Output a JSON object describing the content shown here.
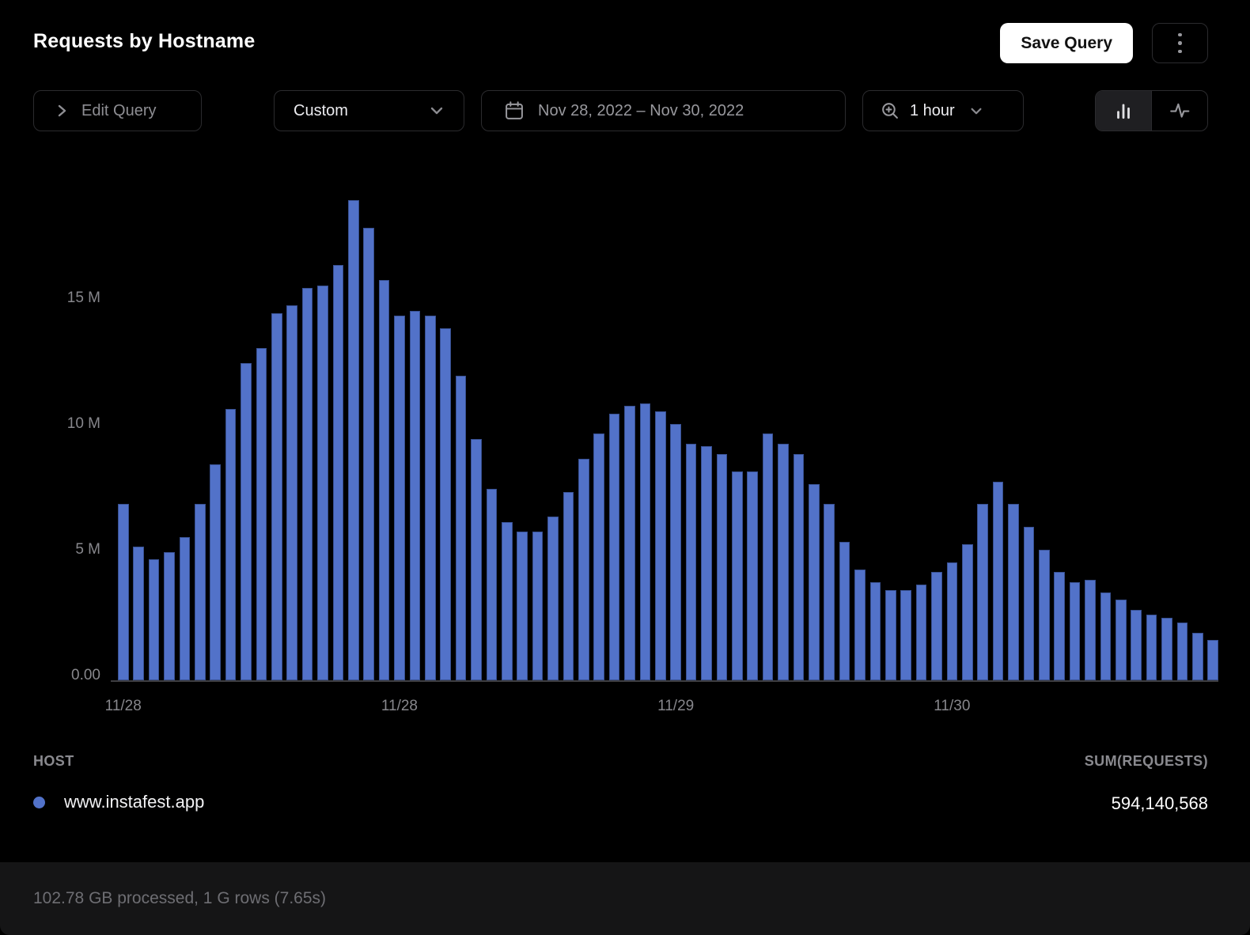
{
  "header": {
    "title": "Requests by Hostname",
    "save_button_label": "Save Query"
  },
  "toolbar": {
    "edit_query_label": "Edit Query",
    "range_preset_value": "Custom",
    "date_range_value": "Nov 28, 2022 – Nov 30, 2022",
    "interval_value": "1 hour",
    "chart_type_selected": "bar"
  },
  "chart_data": {
    "type": "bar",
    "title": "Requests by Hostname",
    "x_unit": "time, 1 hour bins over Nov 28, 2022 – Nov 30, 2022",
    "y_unit": "requests (millions)",
    "ylim_millions": [
      0,
      20.5
    ],
    "grid": false,
    "legend_position": "bottom-table",
    "bar_color": "#5272c9",
    "y_ticks": [
      {
        "label": "15 M",
        "value_millions": 15
      },
      {
        "label": "10 M",
        "value_millions": 10
      },
      {
        "label": "5 M",
        "value_millions": 5
      },
      {
        "label": "0.00",
        "value_millions": 0
      }
    ],
    "x_ticks": [
      {
        "label": "11/28",
        "bar_index": 0
      },
      {
        "label": "11/28",
        "bar_index": 18
      },
      {
        "label": "11/29",
        "bar_index": 36
      },
      {
        "label": "11/30",
        "bar_index": 54
      }
    ],
    "series": [
      {
        "name": "www.instafest.app",
        "color": "#5272c9",
        "values_millions": [
          7.0,
          5.3,
          4.8,
          5.1,
          5.7,
          7.0,
          8.6,
          10.8,
          12.6,
          13.2,
          14.6,
          14.9,
          15.6,
          15.7,
          16.5,
          19.1,
          18.0,
          15.9,
          14.5,
          14.7,
          14.5,
          14.0,
          12.1,
          9.6,
          7.6,
          6.3,
          5.9,
          5.9,
          6.5,
          7.5,
          8.8,
          9.8,
          10.6,
          10.9,
          11.0,
          10.7,
          10.2,
          9.4,
          9.3,
          9.0,
          8.3,
          8.3,
          9.8,
          9.4,
          9.0,
          7.8,
          7.0,
          5.5,
          4.4,
          3.9,
          3.6,
          3.6,
          3.8,
          4.3,
          4.7,
          5.4,
          7.0,
          7.9,
          7.0,
          6.1,
          5.2,
          4.3,
          3.9,
          4.0,
          3.5,
          3.2,
          2.8,
          2.6,
          2.5,
          2.3,
          1.9,
          1.6
        ]
      }
    ]
  },
  "legend": {
    "host_header": "HOST",
    "value_header": "SUM(REQUESTS)",
    "rows": [
      {
        "host": "www.instafest.app",
        "sum_requests": "594,140,568",
        "color": "#5272c9"
      }
    ]
  },
  "footer": {
    "status_text": "102.78 GB processed, 1 G rows (7.65s)"
  },
  "colors": {
    "background": "#000000",
    "accent_bar": "#5272c9",
    "text_primary": "#ffffff",
    "text_muted": "#98989d",
    "border": "#2b2b2e",
    "footer_bg": "#151516"
  }
}
